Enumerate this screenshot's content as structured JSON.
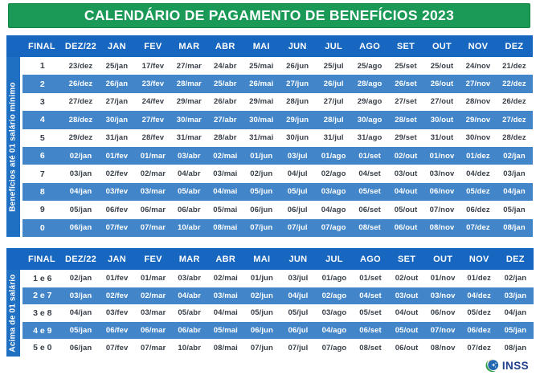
{
  "title": "CALENDÁRIO DE PAGAMENTO DE BENEFÍCIOS 2023",
  "columns": [
    "FINAL",
    "DEZ/22",
    "JAN",
    "FEV",
    "MAR",
    "ABR",
    "MAI",
    "JUN",
    "JUL",
    "AGO",
    "SET",
    "OUT",
    "NOV",
    "DEZ"
  ],
  "tables": [
    {
      "side_label": "Benefícios até 01 salário mínimo",
      "rows": [
        {
          "final": "1",
          "dates": [
            "23/dez",
            "25/jan",
            "17/fev",
            "27/mar",
            "24/abr",
            "25/mai",
            "26/jun",
            "25/jul",
            "25/ago",
            "25/set",
            "25/out",
            "24/nov",
            "21/dez"
          ]
        },
        {
          "final": "2",
          "dates": [
            "26/dez",
            "26/jan",
            "23/fev",
            "28/mar",
            "25/abr",
            "26/mai",
            "27/jun",
            "26/jul",
            "28/ago",
            "26/set",
            "26/out",
            "27/nov",
            "22/dez"
          ]
        },
        {
          "final": "3",
          "dates": [
            "27/dez",
            "27/jan",
            "24/fev",
            "29/mar",
            "26/abr",
            "29/mai",
            "28/jun",
            "27/jul",
            "29/ago",
            "27/set",
            "27/out",
            "28/nov",
            "26/dez"
          ]
        },
        {
          "final": "4",
          "dates": [
            "28/dez",
            "30/jan",
            "27/fev",
            "30/mar",
            "27/abr",
            "30/mai",
            "29/jun",
            "28/jul",
            "30/ago",
            "28/set",
            "30/out",
            "29/nov",
            "27/dez"
          ]
        },
        {
          "final": "5",
          "dates": [
            "29/dez",
            "31/jan",
            "28/fev",
            "31/mar",
            "28/abr",
            "31/mai",
            "30/jun",
            "31/jul",
            "31/ago",
            "29/set",
            "31/out",
            "30/nov",
            "28/dez"
          ]
        },
        {
          "final": "6",
          "dates": [
            "02/jan",
            "01/fev",
            "01/mar",
            "03/abr",
            "02/mai",
            "01/jun",
            "03/jul",
            "01/ago",
            "01/set",
            "02/out",
            "01/nov",
            "01/dez",
            "02/jan"
          ]
        },
        {
          "final": "7",
          "dates": [
            "03/jan",
            "02/fev",
            "02/mar",
            "04/abr",
            "03/mai",
            "02/jun",
            "04/jul",
            "02/ago",
            "04/set",
            "03/out",
            "03/nov",
            "04/dez",
            "03/jan"
          ]
        },
        {
          "final": "8",
          "dates": [
            "04/jan",
            "03/fev",
            "03/mar",
            "05/abr",
            "04/mai",
            "05/jun",
            "05/jul",
            "03/ago",
            "05/set",
            "04/out",
            "06/nov",
            "05/dez",
            "04/jan"
          ]
        },
        {
          "final": "9",
          "dates": [
            "05/jan",
            "06/fev",
            "06/mar",
            "06/abr",
            "05/mai",
            "06/jun",
            "06/jul",
            "04/ago",
            "06/set",
            "05/out",
            "07/nov",
            "06/dez",
            "05/jan"
          ]
        },
        {
          "final": "0",
          "dates": [
            "06/jan",
            "07/fev",
            "07/mar",
            "10/abr",
            "08/mai",
            "07/jun",
            "07/jul",
            "07/ago",
            "08/set",
            "06/out",
            "08/nov",
            "07/dez",
            "08/jan"
          ]
        }
      ]
    },
    {
      "side_label": "Acima de 01 salário",
      "rows": [
        {
          "final": "1 e 6",
          "dates": [
            "02/jan",
            "01/fev",
            "01/mar",
            "03/abr",
            "02/mai",
            "01/jun",
            "03/jul",
            "01/ago",
            "01/set",
            "02/out",
            "01/nov",
            "01/dez",
            "02/jan"
          ]
        },
        {
          "final": "2 e 7",
          "dates": [
            "03/jan",
            "02/fev",
            "02/mar",
            "04/abr",
            "03/mai",
            "02/jun",
            "04/jul",
            "02/ago",
            "04/set",
            "03/out",
            "03/nov",
            "04/dez",
            "03/jan"
          ]
        },
        {
          "final": "3 e 8",
          "dates": [
            "04/jan",
            "03/fev",
            "03/mar",
            "05/abr",
            "04/mai",
            "05/jun",
            "05/jul",
            "03/ago",
            "05/set",
            "04/out",
            "06/nov",
            "05/dez",
            "04/jan"
          ]
        },
        {
          "final": "4 e 9",
          "dates": [
            "05/jan",
            "06/fev",
            "06/mar",
            "06/abr",
            "05/mai",
            "06/jun",
            "06/jul",
            "04/ago",
            "06/set",
            "05/out",
            "07/nov",
            "06/dez",
            "05/jan"
          ]
        },
        {
          "final": "5 e 0",
          "dates": [
            "06/jan",
            "07/fev",
            "07/mar",
            "10/abr",
            "08/mai",
            "07/jun",
            "07/jul",
            "07/ago",
            "08/set",
            "06/out",
            "08/nov",
            "07/dez",
            "08/jan"
          ]
        }
      ]
    }
  ],
  "logo": {
    "label": "INSS",
    "icon": "inss-emblem-icon"
  },
  "colors": {
    "header_green": "#1A9A56",
    "header_blue": "#1766BF",
    "strip_blue": "#1F6FC3",
    "alt_row_blue": "#4285C8",
    "text_dark": "#394049",
    "logo_navy": "#1E3F8B"
  }
}
